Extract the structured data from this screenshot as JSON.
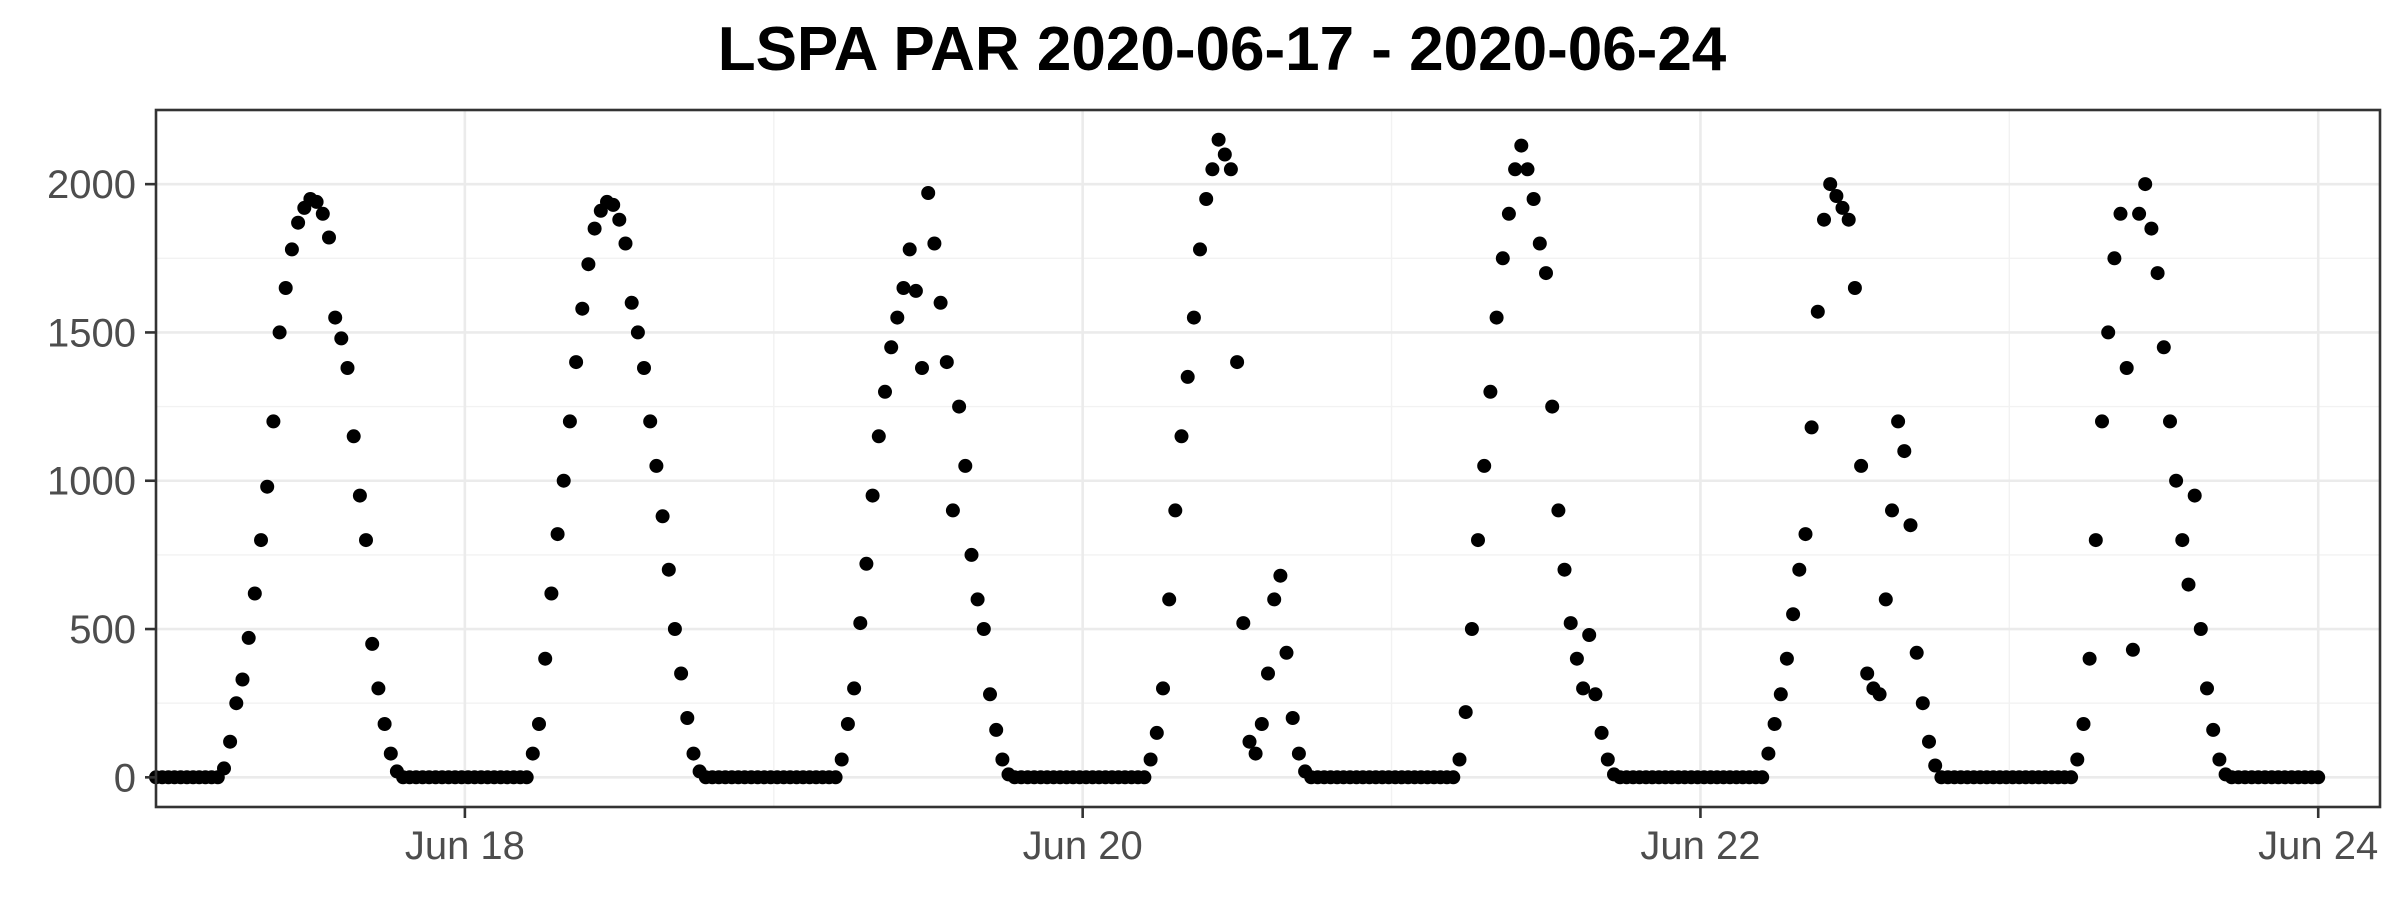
{
  "chart_data": {
    "type": "scatter",
    "title": "LSPA PAR 2020-06-17 - 2020-06-24",
    "xlabel": "",
    "ylabel": "",
    "x_unit": "day of June 2020",
    "xlim": [
      17.0,
      24.2
    ],
    "ylim": [
      -100,
      2250
    ],
    "x_ticks": [
      {
        "value": 18,
        "label": "Jun 18"
      },
      {
        "value": 20,
        "label": "Jun 20"
      },
      {
        "value": 22,
        "label": "Jun 22"
      },
      {
        "value": 24,
        "label": "Jun 24"
      }
    ],
    "y_ticks": [
      {
        "value": 0,
        "label": "0"
      },
      {
        "value": 500,
        "label": "500"
      },
      {
        "value": 1000,
        "label": "1000"
      },
      {
        "value": 1500,
        "label": "1500"
      },
      {
        "value": 2000,
        "label": "2000"
      }
    ],
    "grid": true,
    "point_color": "#000000",
    "night_value": 0,
    "sampling_step_days": 0.0208,
    "series": [
      {
        "points": [
          [
            17.0,
            0
          ],
          [
            17.2,
            0
          ],
          [
            17.22,
            30
          ],
          [
            17.24,
            120
          ],
          [
            17.26,
            250
          ],
          [
            17.28,
            330
          ],
          [
            17.3,
            470
          ],
          [
            17.32,
            620
          ],
          [
            17.34,
            800
          ],
          [
            17.36,
            980
          ],
          [
            17.38,
            1200
          ],
          [
            17.4,
            1500
          ],
          [
            17.42,
            1650
          ],
          [
            17.44,
            1780
          ],
          [
            17.46,
            1870
          ],
          [
            17.48,
            1920
          ],
          [
            17.5,
            1950
          ],
          [
            17.52,
            1940
          ],
          [
            17.54,
            1900
          ],
          [
            17.56,
            1820
          ],
          [
            17.58,
            1550
          ],
          [
            17.6,
            1480
          ],
          [
            17.62,
            1380
          ],
          [
            17.64,
            1150
          ],
          [
            17.66,
            950
          ],
          [
            17.68,
            800
          ],
          [
            17.7,
            450
          ],
          [
            17.72,
            300
          ],
          [
            17.74,
            180
          ],
          [
            17.76,
            80
          ],
          [
            17.78,
            20
          ],
          [
            17.8,
            0
          ],
          [
            18.2,
            0
          ],
          [
            18.22,
            80
          ],
          [
            18.24,
            180
          ],
          [
            18.26,
            400
          ],
          [
            18.28,
            620
          ],
          [
            18.3,
            820
          ],
          [
            18.32,
            1000
          ],
          [
            18.34,
            1200
          ],
          [
            18.36,
            1400
          ],
          [
            18.38,
            1580
          ],
          [
            18.4,
            1730
          ],
          [
            18.42,
            1850
          ],
          [
            18.44,
            1910
          ],
          [
            18.46,
            1940
          ],
          [
            18.48,
            1930
          ],
          [
            18.5,
            1880
          ],
          [
            18.52,
            1800
          ],
          [
            18.54,
            1600
          ],
          [
            18.56,
            1500
          ],
          [
            18.58,
            1380
          ],
          [
            18.6,
            1200
          ],
          [
            18.62,
            1050
          ],
          [
            18.64,
            880
          ],
          [
            18.66,
            700
          ],
          [
            18.68,
            500
          ],
          [
            18.7,
            350
          ],
          [
            18.72,
            200
          ],
          [
            18.74,
            80
          ],
          [
            18.76,
            20
          ],
          [
            18.78,
            0
          ],
          [
            19.2,
            0
          ],
          [
            19.22,
            60
          ],
          [
            19.24,
            180
          ],
          [
            19.26,
            300
          ],
          [
            19.28,
            520
          ],
          [
            19.3,
            720
          ],
          [
            19.32,
            950
          ],
          [
            19.34,
            1150
          ],
          [
            19.36,
            1300
          ],
          [
            19.38,
            1450
          ],
          [
            19.4,
            1550
          ],
          [
            19.42,
            1650
          ],
          [
            19.44,
            1780
          ],
          [
            19.46,
            1640
          ],
          [
            19.48,
            1380
          ],
          [
            19.5,
            1970
          ],
          [
            19.52,
            1800
          ],
          [
            19.54,
            1600
          ],
          [
            19.56,
            1400
          ],
          [
            19.58,
            900
          ],
          [
            19.6,
            1250
          ],
          [
            19.62,
            1050
          ],
          [
            19.64,
            750
          ],
          [
            19.66,
            600
          ],
          [
            19.68,
            500
          ],
          [
            19.7,
            280
          ],
          [
            19.72,
            160
          ],
          [
            19.74,
            60
          ],
          [
            19.76,
            10
          ],
          [
            19.78,
            0
          ],
          [
            20.2,
            0
          ],
          [
            20.22,
            60
          ],
          [
            20.24,
            150
          ],
          [
            20.26,
            300
          ],
          [
            20.28,
            600
          ],
          [
            20.3,
            900
          ],
          [
            20.32,
            1150
          ],
          [
            20.34,
            1350
          ],
          [
            20.36,
            1550
          ],
          [
            20.38,
            1780
          ],
          [
            20.4,
            1950
          ],
          [
            20.42,
            2050
          ],
          [
            20.44,
            2150
          ],
          [
            20.46,
            2100
          ],
          [
            20.48,
            2050
          ],
          [
            20.5,
            1400
          ],
          [
            20.52,
            520
          ],
          [
            20.54,
            120
          ],
          [
            20.56,
            80
          ],
          [
            20.58,
            180
          ],
          [
            20.6,
            350
          ],
          [
            20.62,
            600
          ],
          [
            20.64,
            680
          ],
          [
            20.66,
            420
          ],
          [
            20.68,
            200
          ],
          [
            20.7,
            80
          ],
          [
            20.72,
            20
          ],
          [
            20.74,
            0
          ],
          [
            21.2,
            0
          ],
          [
            21.22,
            60
          ],
          [
            21.24,
            220
          ],
          [
            21.26,
            500
          ],
          [
            21.28,
            800
          ],
          [
            21.3,
            1050
          ],
          [
            21.32,
            1300
          ],
          [
            21.34,
            1550
          ],
          [
            21.36,
            1750
          ],
          [
            21.38,
            1900
          ],
          [
            21.4,
            2050
          ],
          [
            21.42,
            2130
          ],
          [
            21.44,
            2050
          ],
          [
            21.46,
            1950
          ],
          [
            21.48,
            1800
          ],
          [
            21.5,
            1700
          ],
          [
            21.52,
            1250
          ],
          [
            21.54,
            900
          ],
          [
            21.56,
            700
          ],
          [
            21.58,
            520
          ],
          [
            21.6,
            400
          ],
          [
            21.62,
            300
          ],
          [
            21.64,
            480
          ],
          [
            21.66,
            280
          ],
          [
            21.68,
            150
          ],
          [
            21.7,
            60
          ],
          [
            21.72,
            10
          ],
          [
            21.74,
            0
          ],
          [
            22.2,
            0
          ],
          [
            22.22,
            80
          ],
          [
            22.24,
            180
          ],
          [
            22.26,
            280
          ],
          [
            22.28,
            400
          ],
          [
            22.3,
            550
          ],
          [
            22.32,
            700
          ],
          [
            22.34,
            820
          ],
          [
            22.36,
            1180
          ],
          [
            22.38,
            1570
          ],
          [
            22.4,
            1880
          ],
          [
            22.42,
            2000
          ],
          [
            22.44,
            1960
          ],
          [
            22.46,
            1920
          ],
          [
            22.48,
            1880
          ],
          [
            22.5,
            1650
          ],
          [
            22.52,
            1050
          ],
          [
            22.54,
            350
          ],
          [
            22.56,
            300
          ],
          [
            22.58,
            280
          ],
          [
            22.6,
            600
          ],
          [
            22.62,
            900
          ],
          [
            22.64,
            1200
          ],
          [
            22.66,
            1100
          ],
          [
            22.68,
            850
          ],
          [
            22.7,
            420
          ],
          [
            22.72,
            250
          ],
          [
            22.74,
            120
          ],
          [
            22.76,
            40
          ],
          [
            22.78,
            0
          ],
          [
            23.2,
            0
          ],
          [
            23.22,
            60
          ],
          [
            23.24,
            180
          ],
          [
            23.26,
            400
          ],
          [
            23.28,
            800
          ],
          [
            23.3,
            1200
          ],
          [
            23.32,
            1500
          ],
          [
            23.34,
            1750
          ],
          [
            23.36,
            1900
          ],
          [
            23.38,
            1380
          ],
          [
            23.4,
            430
          ],
          [
            23.42,
            1900
          ],
          [
            23.44,
            2000
          ],
          [
            23.46,
            1850
          ],
          [
            23.48,
            1700
          ],
          [
            23.5,
            1450
          ],
          [
            23.52,
            1200
          ],
          [
            23.54,
            1000
          ],
          [
            23.56,
            800
          ],
          [
            23.58,
            650
          ],
          [
            23.6,
            950
          ],
          [
            23.62,
            500
          ],
          [
            23.64,
            300
          ],
          [
            23.66,
            160
          ],
          [
            23.68,
            60
          ],
          [
            23.7,
            10
          ],
          [
            23.72,
            0
          ],
          [
            24.0,
            0
          ]
        ]
      }
    ]
  }
}
